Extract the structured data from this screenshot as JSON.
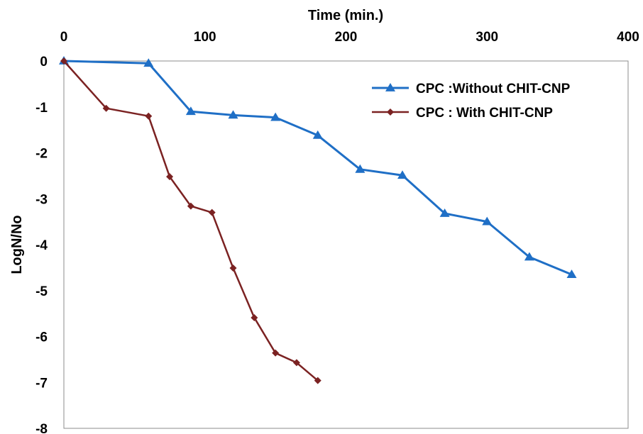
{
  "chart_data": {
    "type": "line",
    "title": "",
    "xlabel": "Time (min.)",
    "ylabel": "LogN/No",
    "xlim": [
      0,
      400
    ],
    "ylim": [
      -8,
      0
    ],
    "x_ticks": [
      0,
      100,
      200,
      300,
      400
    ],
    "y_ticks": [
      0,
      -1,
      -2,
      -3,
      -4,
      -5,
      -6,
      -7,
      -8
    ],
    "x_axis_position": "top",
    "grid": false,
    "legend_position": "top-right",
    "series": [
      {
        "name": "CPC :Without CHIT-CNP",
        "color": "#1f6fc6",
        "marker": "triangle",
        "x": [
          0,
          60,
          90,
          120,
          150,
          180,
          210,
          240,
          270,
          300,
          330,
          360
        ],
        "y": [
          0,
          -0.05,
          -1.1,
          -1.18,
          -1.23,
          -1.62,
          -2.36,
          -2.49,
          -3.32,
          -3.5,
          -4.27,
          -4.65
        ]
      },
      {
        "name": "CPC : With CHIT-CNP",
        "color": "#7b2222",
        "marker": "diamond",
        "x": [
          0,
          30,
          60,
          75,
          90,
          105,
          120,
          135,
          150,
          165,
          180
        ],
        "y": [
          0,
          -1.03,
          -1.2,
          -2.52,
          -3.16,
          -3.3,
          -4.51,
          -5.59,
          -6.36,
          -6.57,
          -6.96
        ]
      }
    ]
  }
}
